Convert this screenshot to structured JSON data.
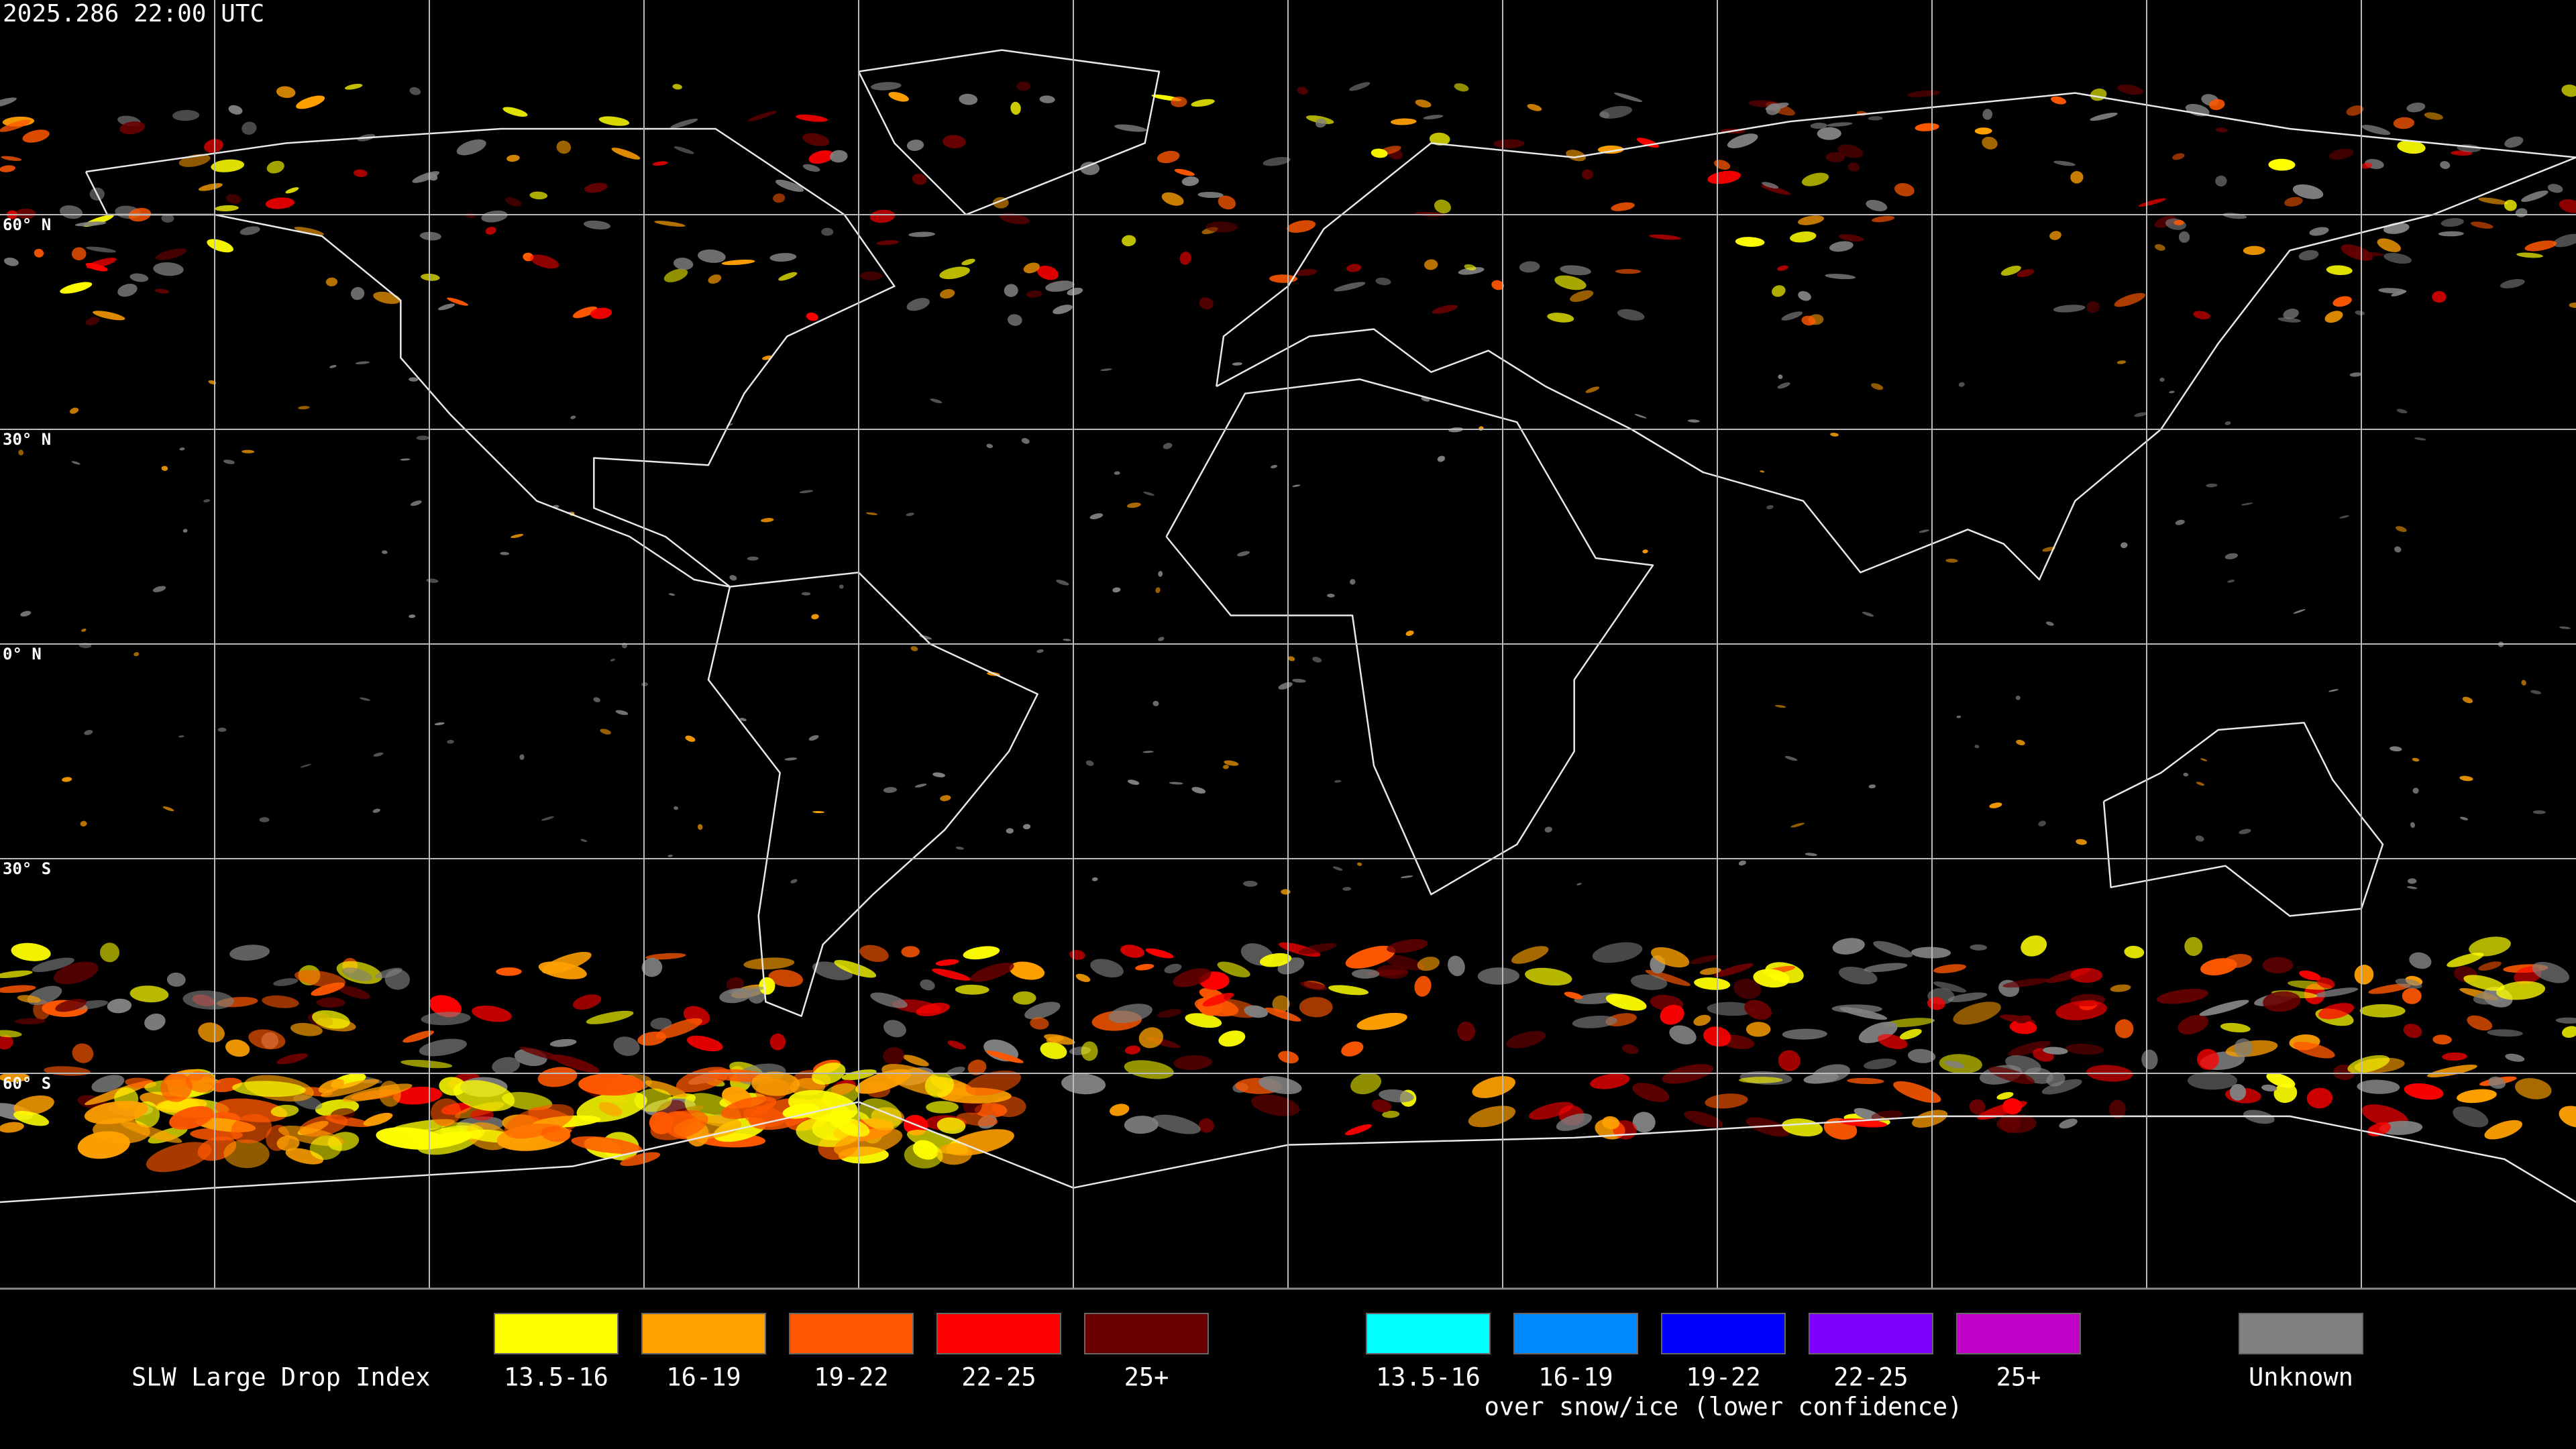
{
  "timestamp": "2025.286 22:00 UTC",
  "latitude_labels": [
    "60° N",
    "30° N",
    "0° N",
    "30° S",
    "60° S"
  ],
  "legend": {
    "title": "SLW Large Drop Index",
    "groups": [
      {
        "items": [
          {
            "label": "13.5-16",
            "color": "#ffff00"
          },
          {
            "label": "16-19",
            "color": "#ffa000"
          },
          {
            "label": "19-22",
            "color": "#ff5800"
          },
          {
            "label": "22-25",
            "color": "#ff0000"
          },
          {
            "label": "25+",
            "color": "#6a0000"
          }
        ]
      },
      {
        "items": [
          {
            "label": "13.5-16",
            "color": "#00ffff"
          },
          {
            "label": "16-19",
            "color": "#0088ff"
          },
          {
            "label": "19-22",
            "color": "#0000ff"
          },
          {
            "label": "22-25",
            "color": "#8000ff"
          },
          {
            "label": "25+",
            "color": "#c000c8"
          }
        ],
        "caption": "over snow/ice (lower confidence)"
      },
      {
        "items": [
          {
            "label": "Unknown",
            "color": "#808080"
          }
        ]
      }
    ]
  }
}
